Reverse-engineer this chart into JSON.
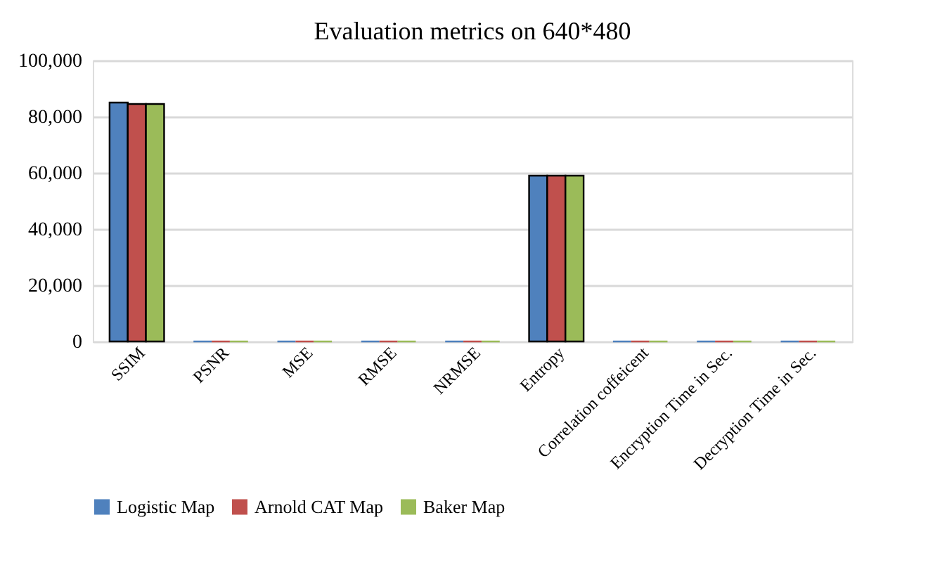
{
  "chart_data": {
    "type": "bar",
    "title": "Evaluation metrics on 640*480",
    "categories": [
      "SSIM",
      "PSNR",
      "MSE",
      "RMSE",
      "NRMSE",
      "Entropy",
      "Correlation coffeicent",
      "Encryption Time in Sec.",
      "Decryption Time in Sec."
    ],
    "series": [
      {
        "name": "Logistic Map",
        "color": "#4f81bd",
        "values": [
          85000,
          0,
          0,
          0,
          0,
          59000,
          0,
          0,
          0
        ]
      },
      {
        "name": "Arnold CAT Map",
        "color": "#c0504d",
        "values": [
          84500,
          0,
          0,
          0,
          0,
          59000,
          0,
          0,
          0
        ]
      },
      {
        "name": "Baker Map",
        "color": "#9bbb59",
        "values": [
          84500,
          0,
          0,
          0,
          0,
          59000,
          0,
          0,
          0
        ]
      }
    ],
    "ylim": [
      0,
      100000
    ],
    "yticks": [
      {
        "value": 0,
        "label": "0"
      },
      {
        "value": 20000,
        "label": "20,000"
      },
      {
        "value": 40000,
        "label": "40,000"
      },
      {
        "value": 60000,
        "label": "60,000"
      },
      {
        "value": 80000,
        "label": "80,000"
      },
      {
        "value": 100000,
        "label": "100,000"
      }
    ],
    "grid": "y",
    "legend": "bottom"
  }
}
